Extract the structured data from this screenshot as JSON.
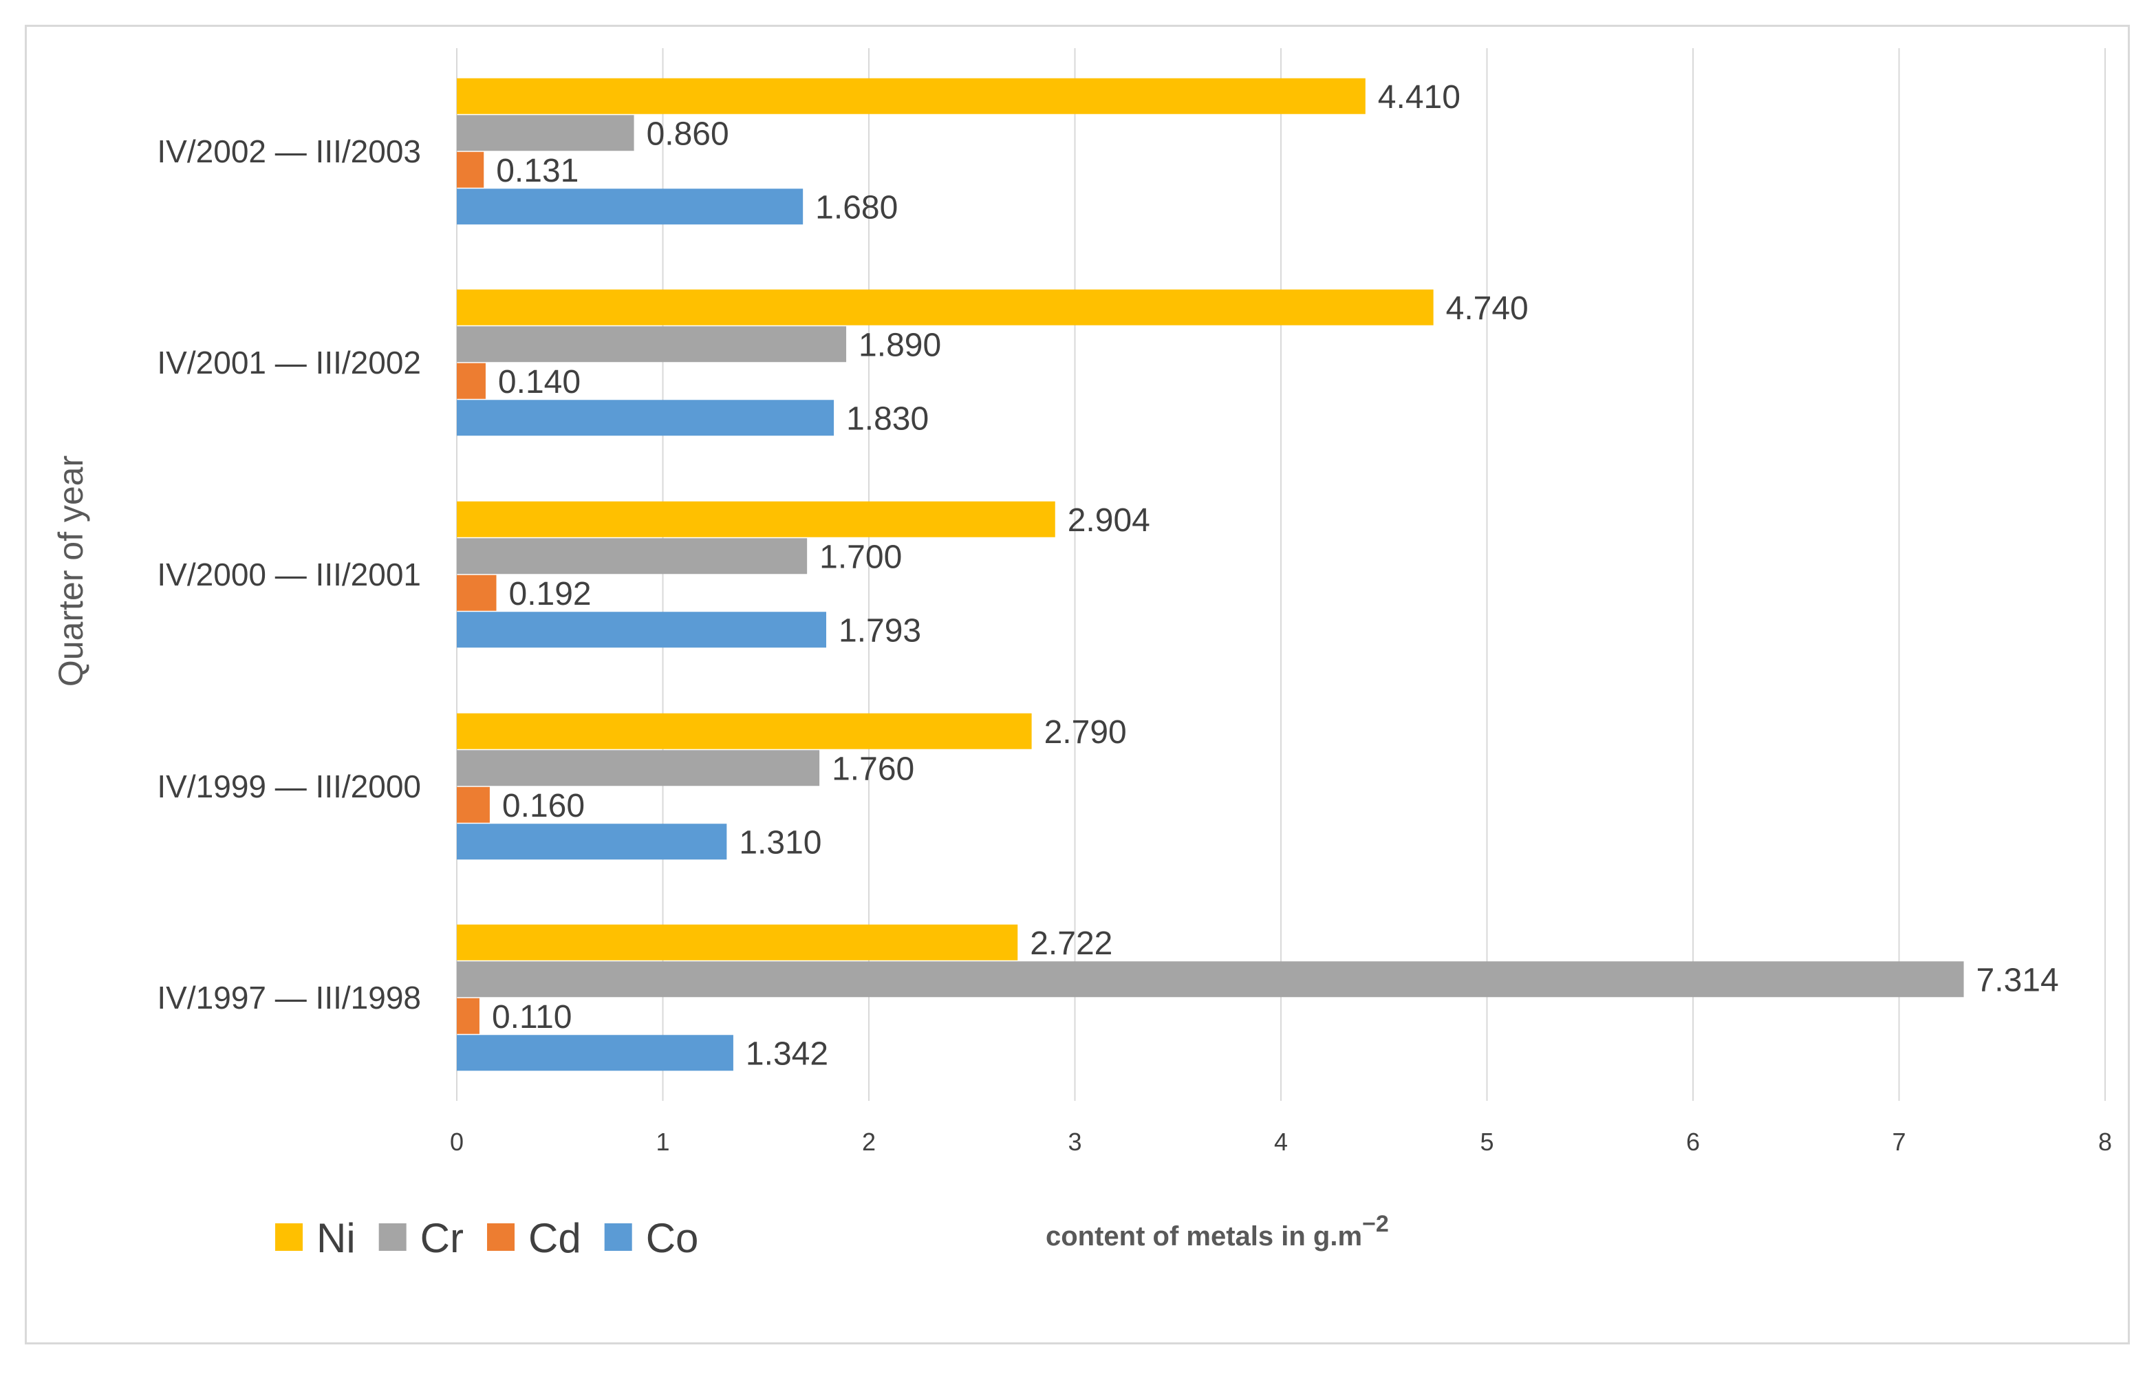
{
  "chart_data": {
    "type": "bar",
    "orientation": "horizontal",
    "categories": [
      "IV/2002 — III/2003",
      "IV/2001 — III/2002",
      "IV/2000 — III/2001",
      "IV/1999 — III/2000",
      "IV/1997 — III/1998"
    ],
    "series": [
      {
        "name": "Ni",
        "color": "#ffc000",
        "values": [
          4.41,
          4.74,
          2.904,
          2.79,
          2.722
        ],
        "labels": [
          "4.410",
          "4.740",
          "2.904",
          "2.790",
          "2.722"
        ]
      },
      {
        "name": "Cr",
        "color": "#a5a5a5",
        "values": [
          0.86,
          1.89,
          1.7,
          1.76,
          7.314
        ],
        "labels": [
          "0.860",
          "1.890",
          "1.700",
          "1.760",
          "7.314"
        ]
      },
      {
        "name": "Cd",
        "color": "#ed7d31",
        "values": [
          0.131,
          0.14,
          0.192,
          0.16,
          0.11
        ],
        "labels": [
          "0.131",
          "0.140",
          "0.192",
          "0.160",
          "0.110"
        ]
      },
      {
        "name": "Co",
        "color": "#5b9bd5",
        "values": [
          1.68,
          1.83,
          1.793,
          1.31,
          1.342
        ],
        "labels": [
          "1.680",
          "1.830",
          "1.793",
          "1.310",
          "1.342"
        ]
      }
    ],
    "xlim": [
      0,
      8
    ],
    "xticks": [
      "0",
      "1",
      "2",
      "3",
      "4",
      "5",
      "6",
      "7",
      "8"
    ],
    "xlabel": {
      "main": "content of metals in g.m",
      "superscript": "−2"
    },
    "ylabel": "Quarter of year",
    "title": "",
    "grid": true,
    "legend_position": "bottom-left",
    "colors": {
      "gridline": "#d9d9d9",
      "text": "#404040",
      "axis_title": "#595959"
    }
  }
}
